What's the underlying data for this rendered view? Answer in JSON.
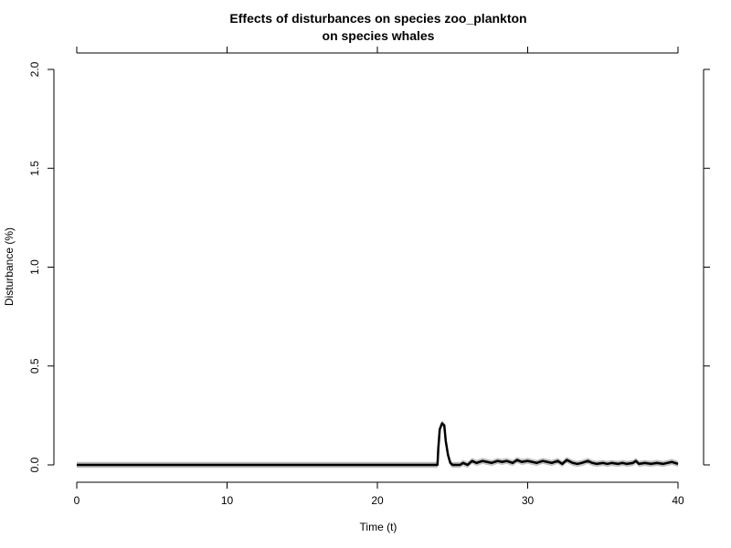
{
  "chart_data": {
    "type": "line",
    "title": "Effects of disturbances on species zoo_plankton",
    "subtitle": "on species whales",
    "xlabel": "Time (t)",
    "ylabel": "Disturbance (%)",
    "xlim": [
      0,
      40
    ],
    "ylim": [
      0,
      2
    ],
    "x_ticks": [
      0,
      10,
      20,
      30,
      40
    ],
    "x_tick_labels": [
      "0",
      "10",
      "20",
      "30",
      "40"
    ],
    "y_ticks": [
      0,
      0.5,
      1,
      1.5,
      2
    ],
    "y_tick_labels": [
      "0.0",
      "0.5",
      "1.0",
      "1.5",
      "2.0"
    ],
    "grid": false,
    "legend": "none",
    "colors": {
      "line": "#000000",
      "band": "#bfbfbf"
    },
    "series": [
      {
        "x": [
          0,
          24.0,
          24.05,
          24.15,
          24.3,
          24.45,
          24.55,
          24.7,
          24.85,
          25.0,
          25.5,
          25.7,
          26.0,
          26.3,
          26.6,
          27.0,
          27.3,
          27.6,
          28.0,
          28.3,
          28.6,
          29.0,
          29.3,
          29.6,
          30.0,
          30.3,
          30.6,
          31.0,
          31.3,
          31.6,
          32.0,
          32.3,
          32.6,
          33.0,
          33.3,
          33.6,
          34.0,
          34.3,
          34.6,
          35.0,
          35.3,
          35.6,
          36.0,
          36.3,
          36.6,
          37.0,
          37.2,
          37.4,
          37.8,
          38.2,
          38.6,
          39.0,
          39.3,
          39.6,
          40.0
        ],
        "y": [
          0.0,
          0.0,
          0.08,
          0.18,
          0.21,
          0.2,
          0.12,
          0.05,
          0.01,
          0.0,
          0.0,
          0.01,
          0.0,
          0.02,
          0.01,
          0.02,
          0.015,
          0.01,
          0.02,
          0.015,
          0.02,
          0.01,
          0.025,
          0.015,
          0.02,
          0.015,
          0.01,
          0.02,
          0.015,
          0.01,
          0.02,
          0.005,
          0.025,
          0.01,
          0.005,
          0.01,
          0.02,
          0.01,
          0.005,
          0.01,
          0.005,
          0.01,
          0.005,
          0.01,
          0.005,
          0.01,
          0.02,
          0.005,
          0.01,
          0.005,
          0.01,
          0.005,
          0.01,
          0.015,
          0.005
        ],
        "band_half_width": 0.015
      }
    ]
  }
}
